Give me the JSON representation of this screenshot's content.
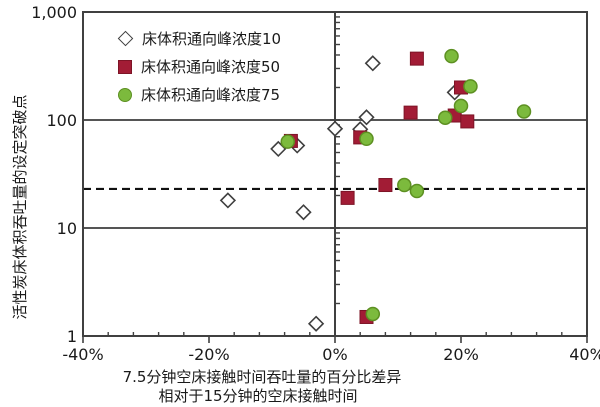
{
  "chart_data": {
    "type": "scatter",
    "title": "",
    "x_axis": {
      "title_line1": "7.5分钟空床接触时间吞吐量的百分比差异",
      "title_line2": "相对于15分钟的空床接触时间",
      "min": -40,
      "max": 40,
      "unit": "%",
      "tick_labels": [
        "-40%",
        "-20%",
        "0%",
        "20%",
        "40%"
      ],
      "tick_values": [
        -40,
        -20,
        0,
        20,
        40
      ],
      "minor_tick_step": 4
    },
    "y_axis": {
      "title": "活性炭床体积吞吐量的设定突破点",
      "scale": "log",
      "min": 1,
      "max": 1000,
      "tick_labels": [
        "1,000",
        "100",
        "10",
        "1"
      ],
      "tick_values": [
        1000,
        100,
        10,
        1
      ]
    },
    "gridlines_y": [
      100,
      10
    ],
    "zero_line_x": 0,
    "reference_line": {
      "y": 23,
      "style": "dashed",
      "color": "#111111"
    },
    "legend_position": "inside-top-left",
    "series": [
      {
        "name": "床体积通向峰浓度10",
        "marker": "diamond-open",
        "fill": "#ffffff",
        "stroke": "#3f3f3f",
        "points": [
          [
            -17,
            18
          ],
          [
            -9,
            54
          ],
          [
            -6,
            58
          ],
          [
            -5,
            14
          ],
          [
            -3,
            1.3
          ],
          [
            0,
            83
          ],
          [
            4,
            82
          ],
          [
            5,
            106
          ],
          [
            6,
            335
          ],
          [
            19,
            180
          ]
        ]
      },
      {
        "name": "床体积通向峰浓度50",
        "marker": "square-filled",
        "fill": "#a21c35",
        "stroke": "#7d1426",
        "points": [
          [
            -7,
            64
          ],
          [
            2,
            19
          ],
          [
            4,
            69
          ],
          [
            5,
            1.5
          ],
          [
            8,
            25
          ],
          [
            12,
            117
          ],
          [
            13,
            370
          ],
          [
            19,
            110
          ],
          [
            21,
            97
          ],
          [
            20,
            200
          ]
        ]
      },
      {
        "name": "床体积通向峰浓度75",
        "marker": "circle-filled",
        "fill": "#7cba3d",
        "stroke": "#5d9022",
        "points": [
          [
            -7.5,
            63
          ],
          [
            5,
            67
          ],
          [
            6,
            1.6
          ],
          [
            11,
            25
          ],
          [
            13,
            22
          ],
          [
            17.5,
            105
          ],
          [
            18.5,
            390
          ],
          [
            20,
            135
          ],
          [
            21.5,
            205
          ],
          [
            30,
            120
          ]
        ]
      }
    ]
  }
}
